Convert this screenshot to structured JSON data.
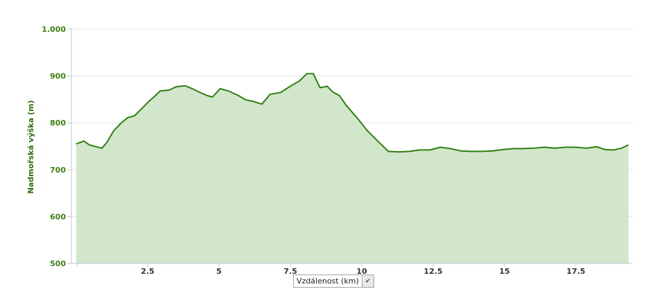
{
  "chart_data": {
    "type": "area",
    "title": "",
    "ylabel": "Nadmořská výška (m)",
    "xlabel": "Vzdálenost (km)",
    "ylim": [
      500,
      1000
    ],
    "yticks": [
      500,
      600,
      700,
      800,
      900,
      1000
    ],
    "ytick_labels": [
      "500",
      "600",
      "700",
      "800",
      "900",
      "1.000"
    ],
    "xticks": [
      2.5,
      5,
      7.5,
      10,
      12.5,
      15,
      17.5
    ],
    "xtick_labels": [
      "2.5",
      "5",
      "7.5",
      "10",
      "12.5",
      "15",
      "17.5"
    ],
    "grid": true,
    "colors": {
      "line": "#2e7d12",
      "fill": "#d1e6ca",
      "grid": "#e2e6e2"
    },
    "x": [
      0,
      0.27,
      0.46,
      0.7,
      0.9,
      1.07,
      1.31,
      1.56,
      1.8,
      2.04,
      2.29,
      2.53,
      2.77,
      2.94,
      3.26,
      3.5,
      3.82,
      4.06,
      4.36,
      4.6,
      4.77,
      5.04,
      5.33,
      5.69,
      5.94,
      6.18,
      6.5,
      6.79,
      7.16,
      7.52,
      7.81,
      8.08,
      8.3,
      8.54,
      8.79,
      8.98,
      9.22,
      9.46,
      9.83,
      10.2,
      10.56,
      10.93,
      11.29,
      11.66,
      12.02,
      12.38,
      12.75,
      13.11,
      13.48,
      13.84,
      14.2,
      14.57,
      14.94,
      15.3,
      15.66,
      16.03,
      16.39,
      16.76,
      17.13,
      17.49,
      17.86,
      18.22,
      18.52,
      18.83,
      19.1,
      19.34
    ],
    "y": [
      755,
      761,
      753,
      749,
      746,
      758,
      783,
      799,
      811,
      815,
      830,
      845,
      858,
      868,
      870,
      877,
      879,
      873,
      864,
      858,
      855,
      873,
      868,
      858,
      849,
      846,
      840,
      861,
      865,
      879,
      889,
      905,
      905,
      875,
      878,
      866,
      858,
      837,
      811,
      783,
      761,
      739,
      738,
      739,
      742,
      742,
      748,
      745,
      740,
      739,
      739,
      740,
      743,
      745,
      745,
      746,
      748,
      746,
      748,
      748,
      746,
      749,
      743,
      742,
      746,
      753
    ]
  },
  "x_selector": {
    "value": "Vzdálenost (km)",
    "arrow_icon": "chevron-down-icon"
  }
}
